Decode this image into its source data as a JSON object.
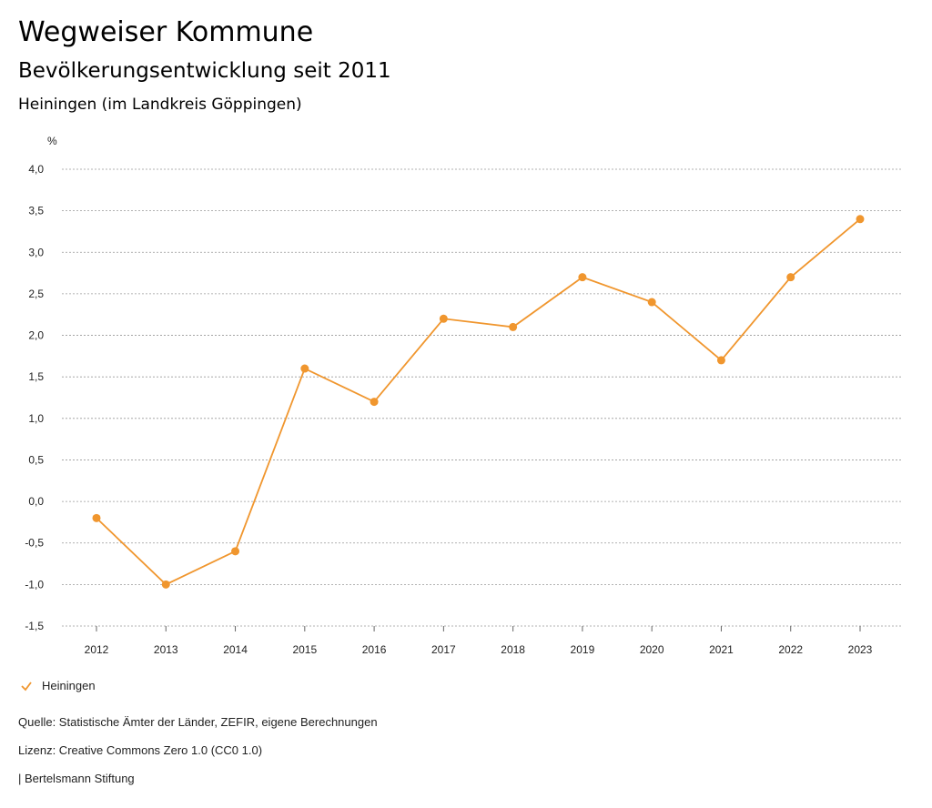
{
  "header": {
    "title": "Wegweiser Kommune",
    "subtitle": "Bevölkerungsentwicklung seit 2011",
    "region": "Heiningen (im Landkreis Göppingen)"
  },
  "chart_data": {
    "type": "line",
    "ylabel": "%",
    "ylim": [
      -1.5,
      4.0
    ],
    "yticks": [
      "4,0",
      "3,5",
      "3,0",
      "2,5",
      "2,0",
      "1,5",
      "1,0",
      "0,5",
      "0,0",
      "-0,5",
      "-1,0",
      "-1,5"
    ],
    "ytick_values": [
      4.0,
      3.5,
      3.0,
      2.5,
      2.0,
      1.5,
      1.0,
      0.5,
      0.0,
      -0.5,
      -1.0,
      -1.5
    ],
    "categories": [
      "2012",
      "2013",
      "2014",
      "2015",
      "2016",
      "2017",
      "2018",
      "2019",
      "2020",
      "2021",
      "2022",
      "2023"
    ],
    "series": [
      {
        "name": "Heiningen",
        "color": "#f0962e",
        "values": [
          -0.2,
          -1.0,
          -0.6,
          1.6,
          1.2,
          2.2,
          2.1,
          2.7,
          2.4,
          1.7,
          2.7,
          3.4
        ]
      }
    ],
    "grid": true,
    "legend": "bottom-left"
  },
  "footer": {
    "source": "Quelle: Statistische Ämter der Länder, ZEFIR, eigene Berechnungen",
    "license": "Lizenz: Creative Commons Zero 1.0 (CC0 1.0)",
    "publisher": "| Bertelsmann Stiftung"
  }
}
